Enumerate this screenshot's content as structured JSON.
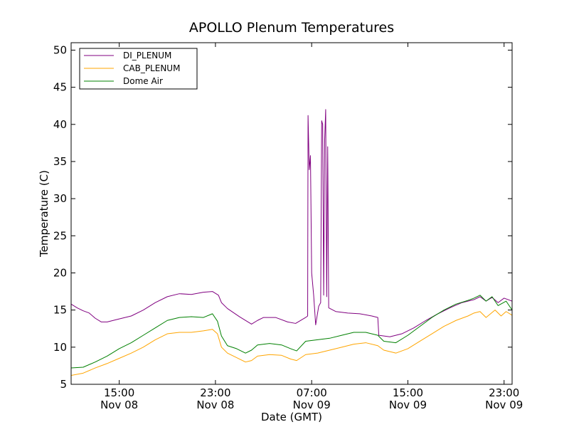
{
  "chart_data": {
    "type": "line",
    "title": "APOLLO Plenum Temperatures",
    "xlabel": "Date (GMT)",
    "ylabel": "Temperature (C)",
    "xlim": [
      "2012-11-08T11:00",
      "2012-11-09T23:40"
    ],
    "ylim": [
      5,
      51
    ],
    "grid": false,
    "legend_position": "top-left",
    "y_ticks": [
      5,
      10,
      15,
      20,
      25,
      30,
      35,
      40,
      45,
      50
    ],
    "x_ticks": [
      {
        "t": "2012-11-08T15:00",
        "line1": "15:00",
        "line2": "Nov 08"
      },
      {
        "t": "2012-11-08T23:00",
        "line1": "23:00",
        "line2": "Nov 08"
      },
      {
        "t": "2012-11-09T07:00",
        "line1": "07:00",
        "line2": "Nov 09"
      },
      {
        "t": "2012-11-09T15:00",
        "line1": "15:00",
        "line2": "Nov 09"
      },
      {
        "t": "2012-11-09T23:00",
        "line1": "23:00",
        "line2": "Nov 09"
      }
    ],
    "series": [
      {
        "name": "DI_PLENUM",
        "color": "#800080",
        "points": [
          [
            "2012-11-08T11:00",
            15.8
          ],
          [
            "2012-11-08T11:30",
            15.3
          ],
          [
            "2012-11-08T12:00",
            14.9
          ],
          [
            "2012-11-08T12:30",
            14.6
          ],
          [
            "2012-11-08T13:00",
            13.9
          ],
          [
            "2012-11-08T13:30",
            13.4
          ],
          [
            "2012-11-08T14:00",
            13.4
          ],
          [
            "2012-11-08T15:00",
            13.8
          ],
          [
            "2012-11-08T16:00",
            14.2
          ],
          [
            "2012-11-08T17:00",
            15.0
          ],
          [
            "2012-11-08T18:00",
            16.0
          ],
          [
            "2012-11-08T19:00",
            16.8
          ],
          [
            "2012-11-08T20:00",
            17.2
          ],
          [
            "2012-11-08T21:00",
            17.1
          ],
          [
            "2012-11-08T22:00",
            17.4
          ],
          [
            "2012-11-08T22:45",
            17.5
          ],
          [
            "2012-11-08T23:15",
            17.0
          ],
          [
            "2012-11-08T23:30",
            16.0
          ],
          [
            "2012-11-09T00:00",
            15.2
          ],
          [
            "2012-11-09T01:00",
            14.1
          ],
          [
            "2012-11-09T02:00",
            13.1
          ],
          [
            "2012-11-09T02:30",
            13.6
          ],
          [
            "2012-11-09T03:00",
            14.0
          ],
          [
            "2012-11-09T04:00",
            14.0
          ],
          [
            "2012-11-09T05:00",
            13.4
          ],
          [
            "2012-11-09T05:40",
            13.2
          ],
          [
            "2012-11-09T06:30",
            14.0
          ],
          [
            "2012-11-09T06:40",
            14.2
          ],
          [
            "2012-11-09T06:42",
            41.2
          ],
          [
            "2012-11-09T06:48",
            33.9
          ],
          [
            "2012-11-09T06:54",
            35.8
          ],
          [
            "2012-11-09T07:00",
            20.0
          ],
          [
            "2012-11-09T07:10",
            17.0
          ],
          [
            "2012-11-09T07:20",
            13.0
          ],
          [
            "2012-11-09T07:35",
            15.5
          ],
          [
            "2012-11-09T07:45",
            16.0
          ],
          [
            "2012-11-09T07:50",
            40.5
          ],
          [
            "2012-11-09T07:55",
            40.0
          ],
          [
            "2012-11-09T08:00",
            17.0
          ],
          [
            "2012-11-09T08:05",
            38.0
          ],
          [
            "2012-11-09T08:10",
            42.0
          ],
          [
            "2012-11-09T08:15",
            16.8
          ],
          [
            "2012-11-09T08:20",
            37.0
          ],
          [
            "2012-11-09T08:25",
            15.3
          ],
          [
            "2012-11-09T09:00",
            14.8
          ],
          [
            "2012-11-09T10:00",
            14.6
          ],
          [
            "2012-11-09T11:00",
            14.5
          ],
          [
            "2012-11-09T12:00",
            14.2
          ],
          [
            "2012-11-09T12:30",
            14.0
          ],
          [
            "2012-11-09T12:35",
            11.6
          ],
          [
            "2012-11-09T13:30",
            11.4
          ],
          [
            "2012-11-09T14:30",
            11.8
          ],
          [
            "2012-11-09T15:30",
            12.6
          ],
          [
            "2012-11-09T16:30",
            13.6
          ],
          [
            "2012-11-09T17:30",
            14.5
          ],
          [
            "2012-11-09T18:30",
            15.3
          ],
          [
            "2012-11-09T19:30",
            16.0
          ],
          [
            "2012-11-09T20:30",
            16.4
          ],
          [
            "2012-11-09T21:00",
            16.8
          ],
          [
            "2012-11-09T21:30",
            16.2
          ],
          [
            "2012-11-09T22:00",
            16.7
          ],
          [
            "2012-11-09T22:30",
            16.0
          ],
          [
            "2012-11-09T23:00",
            16.6
          ],
          [
            "2012-11-09T23:40",
            16.2
          ]
        ]
      },
      {
        "name": "CAB_PLENUM",
        "color": "#ffa500",
        "points": [
          [
            "2012-11-08T11:00",
            6.2
          ],
          [
            "2012-11-08T12:00",
            6.5
          ],
          [
            "2012-11-08T13:00",
            7.2
          ],
          [
            "2012-11-08T14:00",
            7.8
          ],
          [
            "2012-11-08T15:00",
            8.5
          ],
          [
            "2012-11-08T16:00",
            9.2
          ],
          [
            "2012-11-08T17:00",
            10.0
          ],
          [
            "2012-11-08T18:00",
            11.0
          ],
          [
            "2012-11-08T19:00",
            11.8
          ],
          [
            "2012-11-08T20:00",
            12.0
          ],
          [
            "2012-11-08T21:00",
            12.0
          ],
          [
            "2012-11-08T22:00",
            12.2
          ],
          [
            "2012-11-08T22:45",
            12.4
          ],
          [
            "2012-11-08T23:10",
            11.8
          ],
          [
            "2012-11-08T23:30",
            10.0
          ],
          [
            "2012-11-09T00:00",
            9.2
          ],
          [
            "2012-11-09T00:45",
            8.6
          ],
          [
            "2012-11-09T01:30",
            8.0
          ],
          [
            "2012-11-09T02:00",
            8.2
          ],
          [
            "2012-11-09T02:30",
            8.8
          ],
          [
            "2012-11-09T03:30",
            9.0
          ],
          [
            "2012-11-09T04:30",
            8.9
          ],
          [
            "2012-11-09T05:15",
            8.4
          ],
          [
            "2012-11-09T05:45",
            8.2
          ],
          [
            "2012-11-09T06:30",
            9.0
          ],
          [
            "2012-11-09T07:30",
            9.2
          ],
          [
            "2012-11-09T08:30",
            9.6
          ],
          [
            "2012-11-09T09:30",
            10.0
          ],
          [
            "2012-11-09T10:30",
            10.4
          ],
          [
            "2012-11-09T11:30",
            10.6
          ],
          [
            "2012-11-09T12:30",
            10.2
          ],
          [
            "2012-11-09T13:00",
            9.6
          ],
          [
            "2012-11-09T14:00",
            9.2
          ],
          [
            "2012-11-09T15:00",
            9.8
          ],
          [
            "2012-11-09T16:00",
            10.8
          ],
          [
            "2012-11-09T17:00",
            11.8
          ],
          [
            "2012-11-09T18:00",
            12.8
          ],
          [
            "2012-11-09T19:00",
            13.6
          ],
          [
            "2012-11-09T20:00",
            14.2
          ],
          [
            "2012-11-09T20:30",
            14.6
          ],
          [
            "2012-11-09T21:00",
            14.8
          ],
          [
            "2012-11-09T21:30",
            14.0
          ],
          [
            "2012-11-09T22:15",
            15.0
          ],
          [
            "2012-11-09T22:45",
            14.2
          ],
          [
            "2012-11-09T23:10",
            14.8
          ],
          [
            "2012-11-09T23:40",
            14.3
          ]
        ]
      },
      {
        "name": "Dome Air",
        "color": "#008000",
        "points": [
          [
            "2012-11-08T11:00",
            7.2
          ],
          [
            "2012-11-08T12:00",
            7.3
          ],
          [
            "2012-11-08T13:00",
            8.0
          ],
          [
            "2012-11-08T14:00",
            8.8
          ],
          [
            "2012-11-08T15:00",
            9.8
          ],
          [
            "2012-11-08T16:00",
            10.6
          ],
          [
            "2012-11-08T17:00",
            11.6
          ],
          [
            "2012-11-08T18:00",
            12.6
          ],
          [
            "2012-11-08T19:00",
            13.6
          ],
          [
            "2012-11-08T20:00",
            14.0
          ],
          [
            "2012-11-08T21:00",
            14.1
          ],
          [
            "2012-11-08T22:00",
            14.0
          ],
          [
            "2012-11-08T22:45",
            14.5
          ],
          [
            "2012-11-08T23:10",
            13.5
          ],
          [
            "2012-11-08T23:30",
            11.5
          ],
          [
            "2012-11-09T00:00",
            10.2
          ],
          [
            "2012-11-09T00:45",
            9.8
          ],
          [
            "2012-11-09T01:30",
            9.2
          ],
          [
            "2012-11-09T02:00",
            9.6
          ],
          [
            "2012-11-09T02:30",
            10.3
          ],
          [
            "2012-11-09T03:30",
            10.5
          ],
          [
            "2012-11-09T04:30",
            10.3
          ],
          [
            "2012-11-09T05:15",
            9.8
          ],
          [
            "2012-11-09T05:45",
            9.5
          ],
          [
            "2012-11-09T06:30",
            10.8
          ],
          [
            "2012-11-09T07:30",
            11.0
          ],
          [
            "2012-11-09T08:30",
            11.2
          ],
          [
            "2012-11-09T09:30",
            11.6
          ],
          [
            "2012-11-09T10:30",
            12.0
          ],
          [
            "2012-11-09T11:30",
            12.0
          ],
          [
            "2012-11-09T12:30",
            11.6
          ],
          [
            "2012-11-09T13:00",
            10.8
          ],
          [
            "2012-11-09T14:00",
            10.6
          ],
          [
            "2012-11-09T15:00",
            11.6
          ],
          [
            "2012-11-09T16:00",
            12.8
          ],
          [
            "2012-11-09T17:00",
            14.0
          ],
          [
            "2012-11-09T18:00",
            15.0
          ],
          [
            "2012-11-09T19:00",
            15.8
          ],
          [
            "2012-11-09T20:00",
            16.3
          ],
          [
            "2012-11-09T20:30",
            16.6
          ],
          [
            "2012-11-09T21:00",
            17.0
          ],
          [
            "2012-11-09T21:30",
            16.2
          ],
          [
            "2012-11-09T22:00",
            16.8
          ],
          [
            "2012-11-09T22:30",
            15.6
          ],
          [
            "2012-11-09T23:10",
            16.2
          ],
          [
            "2012-11-09T23:40",
            15.0
          ]
        ]
      }
    ]
  }
}
